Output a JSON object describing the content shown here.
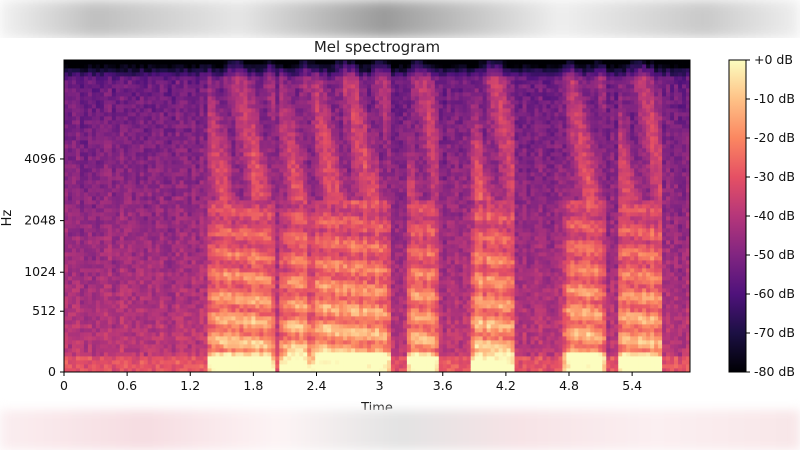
{
  "chart_data": {
    "type": "heatmap",
    "title": "Mel spectrogram",
    "xlabel": "Time",
    "ylabel": "Hz",
    "x_ticks": [
      "0",
      "0.6",
      "1.2",
      "1.8",
      "2.4",
      "3",
      "3.6",
      "4.2",
      "4.8",
      "5.4"
    ],
    "y_ticks": [
      "0",
      "512",
      "1024",
      "2048",
      "4096"
    ],
    "xlim": [
      0,
      5.95
    ],
    "y_scale": "mel",
    "colorbar": {
      "colormap": "magma",
      "ticks": [
        "+0 dB",
        "-10 dB",
        "-20 dB",
        "-30 dB",
        "-40 dB",
        "-50 dB",
        "-60 dB",
        "-70 dB",
        "-80 dB"
      ],
      "range_db": [
        -80,
        0
      ]
    },
    "speech_segments_s": [
      [
        1.35,
        2.0
      ],
      [
        2.05,
        2.35
      ],
      [
        2.35,
        3.1
      ],
      [
        3.25,
        3.55
      ],
      [
        3.85,
        4.3
      ],
      [
        4.75,
        5.15
      ],
      [
        5.25,
        5.7
      ]
    ],
    "colors": {
      "magma_stops": [
        "#000004",
        "#1c1044",
        "#4f127b",
        "#812581",
        "#b5367a",
        "#e55064",
        "#fb8761",
        "#fec287",
        "#fcfdbf"
      ]
    }
  }
}
